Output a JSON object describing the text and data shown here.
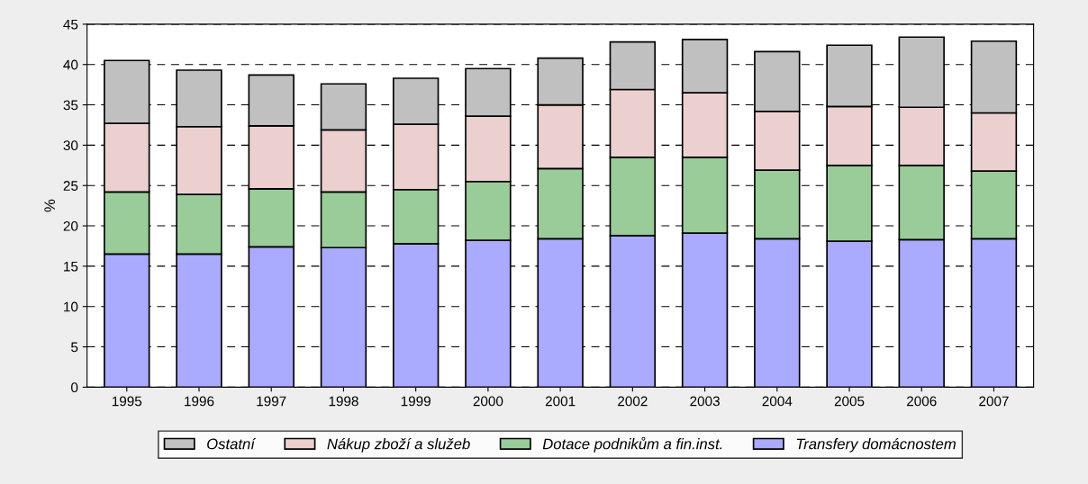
{
  "chart_data": {
    "type": "bar",
    "stacked": true,
    "ylabel": "%",
    "categories": [
      "1995",
      "1996",
      "1997",
      "1998",
      "1999",
      "2000",
      "2001",
      "2002",
      "2003",
      "2004",
      "2005",
      "2006",
      "2007"
    ],
    "series": [
      {
        "name": "Transfery domácnostem",
        "color": "#aaaaff",
        "values": [
          16.5,
          16.5,
          17.4,
          17.3,
          17.8,
          18.2,
          18.4,
          18.8,
          19.1,
          18.4,
          18.1,
          18.3,
          18.4
        ]
      },
      {
        "name": "Dotace podnikům a fin.inst.",
        "color": "#99cc99",
        "values": [
          7.7,
          7.4,
          7.2,
          6.9,
          6.7,
          7.3,
          8.7,
          9.7,
          9.4,
          8.5,
          9.4,
          9.2,
          8.4
        ]
      },
      {
        "name": "Nákup zboží a služeb",
        "color": "#ecd0d0",
        "values": [
          8.5,
          8.4,
          7.8,
          7.7,
          8.1,
          8.1,
          7.9,
          8.4,
          8.0,
          7.3,
          7.3,
          7.2,
          7.2
        ]
      },
      {
        "name": "Ostatní",
        "color": "#c0c0c0",
        "values": [
          7.8,
          7.0,
          6.3,
          5.7,
          5.7,
          5.9,
          5.8,
          5.9,
          6.6,
          7.4,
          7.6,
          8.7,
          8.9
        ]
      }
    ],
    "ylim": [
      0,
      45
    ],
    "yticks": [
      0,
      5,
      10,
      15,
      20,
      25,
      30,
      35,
      40,
      45
    ],
    "grid": "y",
    "legend": "bottom"
  }
}
